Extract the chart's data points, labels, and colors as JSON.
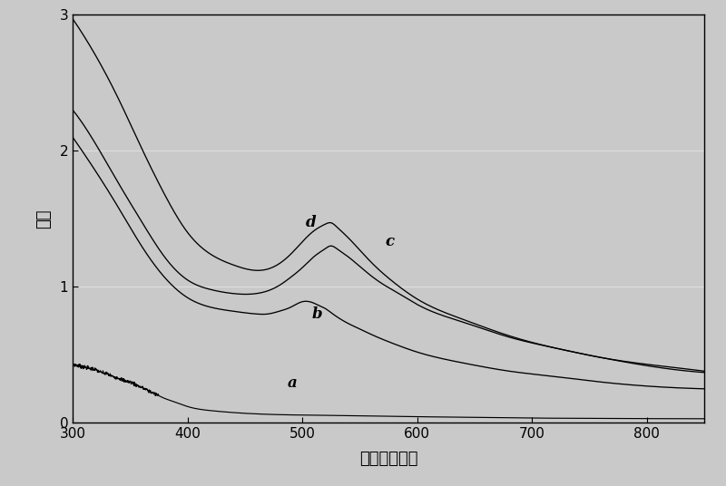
{
  "xlabel": "波长（纳米）",
  "ylabel": "吸收",
  "xlim": [
    300,
    850
  ],
  "ylim": [
    0,
    3.0
  ],
  "yticks": [
    0,
    1,
    2,
    3
  ],
  "xticks": [
    300,
    400,
    500,
    600,
    700,
    800
  ],
  "bg_color": "#c9c9c9",
  "plot_bg_color": "#c9c9c9",
  "line_color": "#000000",
  "curve_a_x": [
    300,
    305,
    310,
    315,
    320,
    325,
    330,
    335,
    340,
    345,
    350,
    355,
    360,
    365,
    370,
    380,
    390,
    400,
    420,
    450,
    480,
    520,
    560,
    600,
    650,
    700,
    750,
    800,
    850
  ],
  "curve_a_y": [
    0.43,
    0.42,
    0.41,
    0.4,
    0.39,
    0.37,
    0.36,
    0.34,
    0.33,
    0.31,
    0.3,
    0.28,
    0.26,
    0.24,
    0.22,
    0.18,
    0.15,
    0.12,
    0.09,
    0.07,
    0.06,
    0.055,
    0.05,
    0.045,
    0.04,
    0.035,
    0.033,
    0.031,
    0.03
  ],
  "curve_b_x": [
    300,
    320,
    340,
    360,
    380,
    400,
    420,
    440,
    460,
    470,
    480,
    490,
    500,
    510,
    515,
    520,
    525,
    530,
    540,
    550,
    560,
    580,
    600,
    640,
    680,
    720,
    760,
    800,
    850
  ],
  "curve_b_y": [
    2.1,
    1.85,
    1.58,
    1.3,
    1.07,
    0.92,
    0.85,
    0.82,
    0.8,
    0.8,
    0.82,
    0.85,
    0.89,
    0.88,
    0.86,
    0.84,
    0.81,
    0.78,
    0.73,
    0.69,
    0.65,
    0.58,
    0.52,
    0.44,
    0.38,
    0.34,
    0.3,
    0.27,
    0.25
  ],
  "curve_c_x": [
    300,
    320,
    340,
    360,
    380,
    400,
    420,
    440,
    460,
    470,
    480,
    490,
    500,
    510,
    520,
    525,
    530,
    540,
    550,
    560,
    570,
    580,
    590,
    600,
    640,
    680,
    720,
    760,
    800,
    850
  ],
  "curve_c_y": [
    2.3,
    2.05,
    1.76,
    1.48,
    1.22,
    1.05,
    0.98,
    0.95,
    0.95,
    0.97,
    1.01,
    1.07,
    1.14,
    1.22,
    1.28,
    1.3,
    1.28,
    1.22,
    1.15,
    1.08,
    1.02,
    0.97,
    0.92,
    0.87,
    0.74,
    0.63,
    0.55,
    0.48,
    0.43,
    0.38
  ],
  "curve_d_x": [
    300,
    320,
    340,
    360,
    380,
    400,
    420,
    440,
    460,
    470,
    480,
    490,
    500,
    510,
    520,
    525,
    530,
    540,
    550,
    560,
    580,
    600,
    640,
    680,
    720,
    760,
    800,
    850
  ],
  "curve_d_y": [
    2.97,
    2.7,
    2.38,
    2.02,
    1.68,
    1.4,
    1.24,
    1.16,
    1.12,
    1.13,
    1.17,
    1.24,
    1.33,
    1.41,
    1.46,
    1.47,
    1.44,
    1.36,
    1.27,
    1.18,
    1.03,
    0.91,
    0.76,
    0.64,
    0.55,
    0.48,
    0.42,
    0.37
  ],
  "label_a": [
    487,
    0.265
  ],
  "label_b": [
    508,
    0.77
  ],
  "label_c": [
    572,
    1.3
  ],
  "label_d": [
    503,
    1.44
  ]
}
